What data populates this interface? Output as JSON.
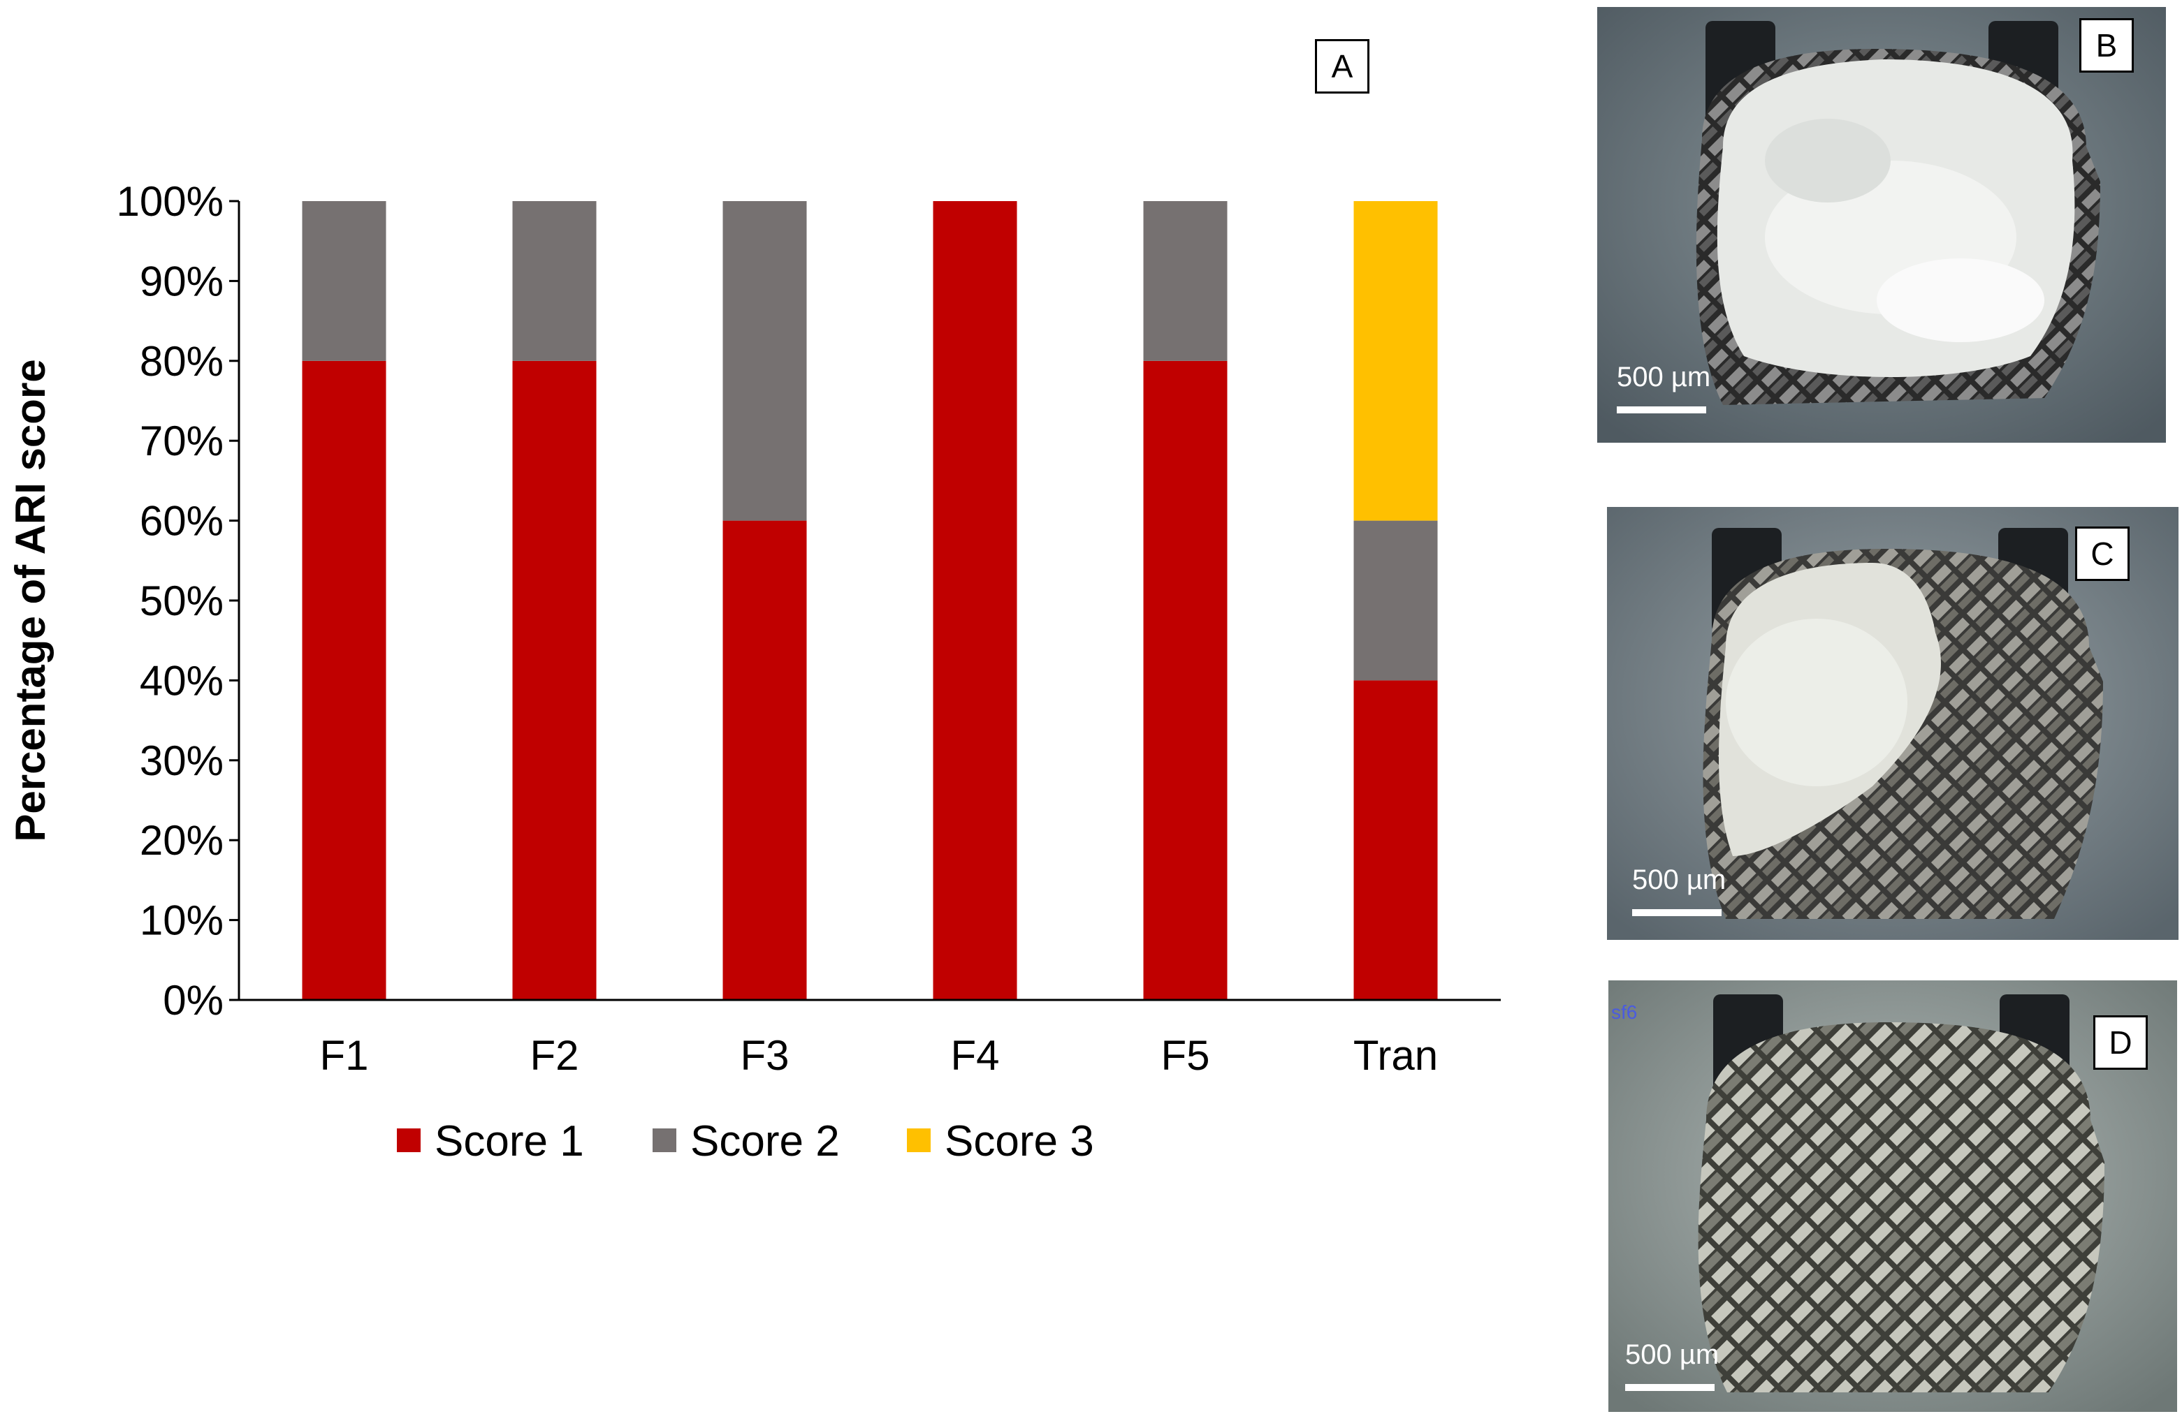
{
  "chart_data": {
    "type": "bar",
    "stacked": true,
    "panel": "A",
    "categories": [
      "F1",
      "F2",
      "F3",
      "F4",
      "F5",
      "Tran"
    ],
    "series": [
      {
        "name": "Score 1",
        "color": "#c00000",
        "values": [
          80,
          80,
          60,
          100,
          80,
          40
        ]
      },
      {
        "name": "Score 2",
        "color": "#767171",
        "values": [
          20,
          20,
          40,
          0,
          20,
          20
        ]
      },
      {
        "name": "Score 3",
        "color": "#ffc000",
        "values": [
          0,
          0,
          0,
          0,
          0,
          40
        ]
      }
    ],
    "ylabel": "Percentage of ARI score",
    "xlabel": "",
    "ylim": [
      0,
      100
    ],
    "yticks": [
      "0%",
      "10%",
      "20%",
      "30%",
      "40%",
      "50%",
      "60%",
      "70%",
      "80%",
      "90%",
      "100%"
    ],
    "legend_position": "bottom",
    "grid": false
  },
  "images": [
    {
      "label": "B",
      "scale_text": "500 µm",
      "tag": ""
    },
    {
      "label": "C",
      "scale_text": "500 µm",
      "tag": ""
    },
    {
      "label": "D",
      "scale_text": "500 µm",
      "tag": "sf6"
    }
  ]
}
